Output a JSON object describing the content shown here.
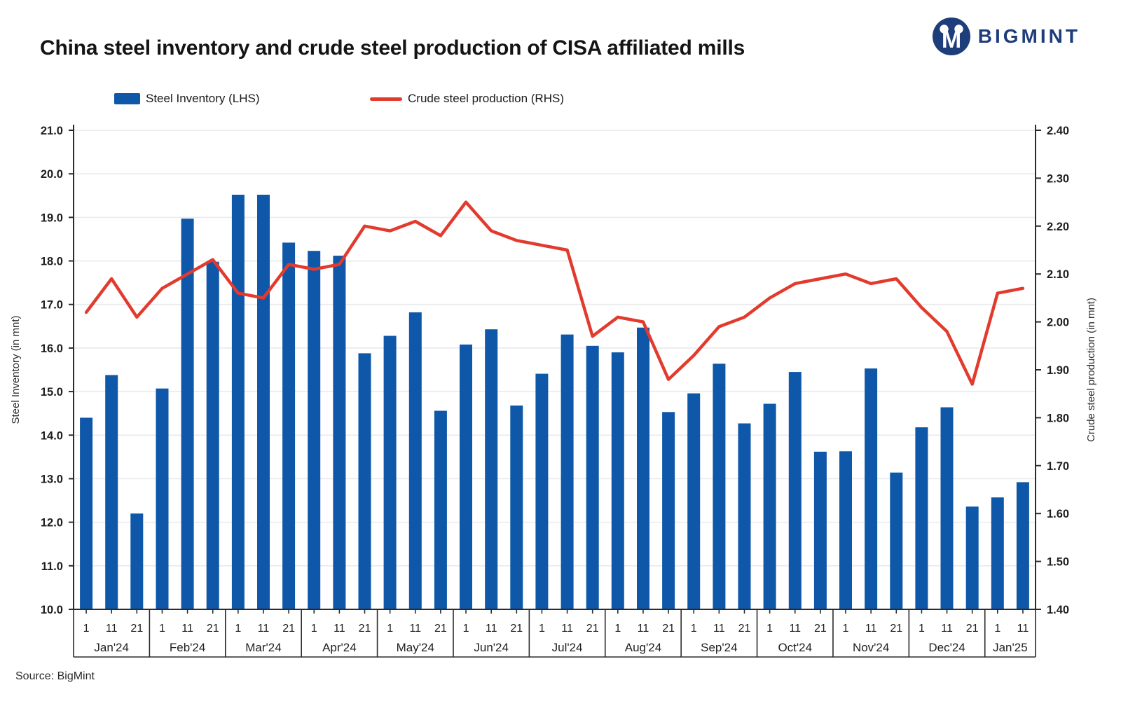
{
  "header": {
    "title": "China steel inventory and crude steel production of CISA affiliated mills",
    "brand": "BIGMINT"
  },
  "legend": [
    {
      "label": "Steel Inventory (LHS)",
      "type": "bar",
      "color": "#0f57a8"
    },
    {
      "label": "Crude steel production (RHS)",
      "type": "line",
      "color": "#e23b2e"
    }
  ],
  "source": "Source: BigMint",
  "colors": {
    "bar": "#0f57a8",
    "line": "#e23b2e",
    "grid": "#eaeaee",
    "axis": "#2b2b2b",
    "text": "#1f1f1f",
    "brand_navy": "#1e3d7b"
  },
  "chart_data": {
    "type": "bar+line",
    "title": "China steel inventory and crude steel production of CISA affiliated mills",
    "grid": true,
    "months": [
      {
        "label": "Jan'24",
        "days": [
          "1",
          "11",
          "21"
        ]
      },
      {
        "label": "Feb'24",
        "days": [
          "1",
          "11",
          "21"
        ]
      },
      {
        "label": "Mar'24",
        "days": [
          "1",
          "11",
          "21"
        ]
      },
      {
        "label": "Apr'24",
        "days": [
          "1",
          "11",
          "21"
        ]
      },
      {
        "label": "May'24",
        "days": [
          "1",
          "11",
          "21"
        ]
      },
      {
        "label": "Jun'24",
        "days": [
          "1",
          "11",
          "21"
        ]
      },
      {
        "label": "Jul'24",
        "days": [
          "1",
          "11",
          "21"
        ]
      },
      {
        "label": "Aug'24",
        "days": [
          "1",
          "11",
          "21"
        ]
      },
      {
        "label": "Sep'24",
        "days": [
          "1",
          "11",
          "21"
        ]
      },
      {
        "label": "Oct'24",
        "days": [
          "1",
          "11",
          "21"
        ]
      },
      {
        "label": "Nov'24",
        "days": [
          "1",
          "11",
          "21"
        ]
      },
      {
        "label": "Dec'24",
        "days": [
          "1",
          "11",
          "21"
        ]
      },
      {
        "label": "Jan'25",
        "days": [
          "1",
          "11"
        ]
      }
    ],
    "left_axis": {
      "title": "Steel Inventory (in mnt)",
      "min": 10.0,
      "max": 21.0,
      "step": 1.0,
      "decimals": 1
    },
    "right_axis": {
      "title": "Crude steel production (in mnt)",
      "min": 1.4,
      "max": 2.4,
      "step": 0.1,
      "decimals": 2
    },
    "series": [
      {
        "name": "Steel Inventory (LHS)",
        "type": "bar",
        "axis": "left",
        "color": "#0f57a8",
        "values": [
          14.4,
          15.38,
          12.2,
          15.07,
          18.97,
          17.98,
          19.52,
          19.52,
          18.42,
          18.23,
          18.12,
          15.88,
          16.28,
          16.82,
          14.56,
          16.08,
          16.43,
          14.68,
          15.41,
          16.31,
          16.05,
          15.9,
          16.47,
          14.53,
          14.96,
          15.64,
          14.27,
          14.72,
          15.45,
          13.62,
          13.63,
          15.53,
          13.14,
          14.18,
          14.64,
          12.36,
          12.57,
          12.92
        ]
      },
      {
        "name": "Crude steel production (RHS)",
        "type": "line",
        "axis": "right",
        "color": "#e23b2e",
        "values": [
          2.02,
          2.09,
          2.01,
          2.07,
          2.1,
          2.13,
          2.06,
          2.05,
          2.12,
          2.11,
          2.12,
          2.2,
          2.19,
          2.21,
          2.18,
          2.25,
          2.19,
          2.17,
          2.16,
          2.15,
          1.97,
          2.01,
          2.0,
          1.88,
          1.93,
          1.99,
          2.01,
          2.05,
          2.08,
          2.09,
          2.1,
          2.08,
          2.09,
          2.03,
          1.98,
          1.87,
          2.06,
          2.07
        ]
      }
    ]
  }
}
